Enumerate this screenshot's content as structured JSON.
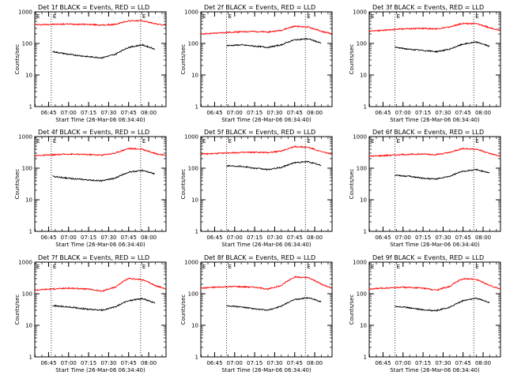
{
  "chart_data": [
    {
      "type": "line",
      "title": "Det 1f BLACK = Events, RED = LLD",
      "xlabel": "Start Time (26-Mar-06 06:34:40)",
      "ylabel": "Counts/sec",
      "yscale": "log",
      "ylim": [
        1,
        1000
      ],
      "xlim": [
        "06:34:40",
        "08:13:00"
      ],
      "x_ticks": [
        "06:45",
        "07:00",
        "07:15",
        "07:30",
        "07:45",
        "08:00"
      ],
      "y_ticks": [
        "1",
        "10",
        "100",
        "1000"
      ],
      "markers": [
        "06:47",
        "07:54"
      ],
      "marker_label": "E",
      "grid": false,
      "series": [
        {
          "color": "#ff0000",
          "x": [
            "06:34:40",
            "06:45",
            "07:00",
            "07:15",
            "07:25",
            "07:35",
            "07:45",
            "07:55",
            "08:05",
            "08:13"
          ],
          "y": [
            390,
            400,
            410,
            400,
            380,
            400,
            520,
            520,
            420,
            370
          ]
        },
        {
          "color": "#000000",
          "x": [
            "06:48",
            "07:00",
            "07:15",
            "07:25",
            "07:35",
            "07:45",
            "07:55",
            "08:05"
          ],
          "y": [
            55,
            45,
            38,
            35,
            45,
            75,
            90,
            65
          ]
        }
      ]
    },
    {
      "type": "line",
      "title": "Det 2f BLACK = Events, RED = LLD",
      "xlabel": "Start Time (26-Mar-06 06:34:40)",
      "ylabel": "Counts/sec",
      "yscale": "log",
      "ylim": [
        1,
        1000
      ],
      "xlim": [
        "06:34:40",
        "08:13:00"
      ],
      "x_ticks": [
        "06:45",
        "07:00",
        "07:15",
        "07:30",
        "07:45",
        "08:00"
      ],
      "y_ticks": [
        "1",
        "10",
        "100",
        "1000"
      ],
      "markers": [
        "06:54",
        "07:53"
      ],
      "marker_label": "E",
      "grid": false,
      "series": [
        {
          "color": "#ff0000",
          "x": [
            "06:34:40",
            "06:45",
            "07:00",
            "07:15",
            "07:25",
            "07:35",
            "07:45",
            "07:55",
            "08:05",
            "08:13"
          ],
          "y": [
            200,
            210,
            230,
            240,
            230,
            260,
            350,
            330,
            240,
            200
          ]
        },
        {
          "color": "#000000",
          "x": [
            "06:54",
            "07:05",
            "07:15",
            "07:25",
            "07:35",
            "07:45",
            "07:55",
            "08:05"
          ],
          "y": [
            85,
            90,
            82,
            75,
            90,
            130,
            140,
            100
          ]
        }
      ]
    },
    {
      "type": "line",
      "title": "Det 3f BLACK = Events, RED = LLD",
      "xlabel": "Start Time (26-Mar-06 06:34:40)",
      "ylabel": "Counts/sec",
      "yscale": "log",
      "ylim": [
        1,
        1000
      ],
      "xlim": [
        "06:34:40",
        "08:13:00"
      ],
      "x_ticks": [
        "06:45",
        "07:00",
        "07:15",
        "07:30",
        "07:45",
        "08:00"
      ],
      "y_ticks": [
        "1",
        "10",
        "100",
        "1000"
      ],
      "markers": [
        "06:54",
        "07:53"
      ],
      "marker_label": "E",
      "grid": false,
      "series": [
        {
          "color": "#ff0000",
          "x": [
            "06:34:40",
            "06:45",
            "07:00",
            "07:15",
            "07:25",
            "07:35",
            "07:45",
            "07:55",
            "08:05",
            "08:13"
          ],
          "y": [
            250,
            260,
            290,
            300,
            290,
            330,
            430,
            420,
            310,
            260
          ]
        },
        {
          "color": "#000000",
          "x": [
            "06:54",
            "07:05",
            "07:15",
            "07:25",
            "07:35",
            "07:45",
            "07:55",
            "08:05"
          ],
          "y": [
            75,
            65,
            60,
            55,
            65,
            95,
            110,
            80
          ]
        }
      ]
    },
    {
      "type": "line",
      "title": "Det 4f BLACK = Events, RED = LLD",
      "xlabel": "Start Time (26-Mar-06 06:34:40)",
      "ylabel": "Counts/sec",
      "yscale": "log",
      "ylim": [
        1,
        1000
      ],
      "xlim": [
        "06:34:40",
        "08:13:00"
      ],
      "x_ticks": [
        "06:45",
        "07:00",
        "07:15",
        "07:30",
        "07:45",
        "08:00"
      ],
      "y_ticks": [
        "1",
        "10",
        "100",
        "1000"
      ],
      "markers": [
        "06:47",
        "07:54"
      ],
      "marker_label": "E",
      "grid": false,
      "series": [
        {
          "color": "#ff0000",
          "x": [
            "06:34:40",
            "06:45",
            "07:00",
            "07:15",
            "07:25",
            "07:35",
            "07:45",
            "07:55",
            "08:05",
            "08:13"
          ],
          "y": [
            250,
            260,
            280,
            270,
            260,
            300,
            420,
            400,
            290,
            250
          ]
        },
        {
          "color": "#000000",
          "x": [
            "06:48",
            "07:00",
            "07:15",
            "07:25",
            "07:35",
            "07:45",
            "07:55",
            "08:05"
          ],
          "y": [
            55,
            48,
            42,
            40,
            48,
            75,
            85,
            65
          ]
        }
      ]
    },
    {
      "type": "line",
      "title": "Det 5f BLACK = Events, RED = LLD",
      "xlabel": "Start Time (26-Mar-06 06:34:40)",
      "ylabel": "Counts/sec",
      "yscale": "log",
      "ylim": [
        1,
        1000
      ],
      "xlim": [
        "06:34:40",
        "08:13:00"
      ],
      "x_ticks": [
        "06:45",
        "07:00",
        "07:15",
        "07:30",
        "07:45",
        "08:00"
      ],
      "y_ticks": [
        "1",
        "10",
        "100",
        "1000"
      ],
      "markers": [
        "06:54",
        "07:53"
      ],
      "marker_label": "E",
      "grid": false,
      "series": [
        {
          "color": "#ff0000",
          "x": [
            "06:34:40",
            "06:45",
            "07:00",
            "07:15",
            "07:25",
            "07:35",
            "07:45",
            "07:55",
            "08:05",
            "08:13"
          ],
          "y": [
            280,
            290,
            310,
            320,
            310,
            350,
            480,
            460,
            330,
            280
          ]
        },
        {
          "color": "#000000",
          "x": [
            "06:54",
            "07:05",
            "07:15",
            "07:25",
            "07:35",
            "07:45",
            "07:55",
            "08:05"
          ],
          "y": [
            120,
            115,
            100,
            90,
            105,
            150,
            160,
            120
          ]
        }
      ]
    },
    {
      "type": "line",
      "title": "Det 6f BLACK = Events, RED = LLD",
      "xlabel": "Start Time (26-Mar-06 06:34:40)",
      "ylabel": "Counts/sec",
      "yscale": "log",
      "ylim": [
        1,
        1000
      ],
      "xlim": [
        "06:34:40",
        "08:13:00"
      ],
      "x_ticks": [
        "06:45",
        "07:00",
        "07:15",
        "07:30",
        "07:45",
        "08:00"
      ],
      "y_ticks": [
        "1",
        "10",
        "100",
        "1000"
      ],
      "markers": [
        "06:54",
        "07:53"
      ],
      "marker_label": "E",
      "grid": false,
      "series": [
        {
          "color": "#ff0000",
          "x": [
            "06:34:40",
            "06:45",
            "07:00",
            "07:15",
            "07:25",
            "07:35",
            "07:45",
            "07:55",
            "08:05",
            "08:13"
          ],
          "y": [
            240,
            250,
            270,
            280,
            270,
            310,
            420,
            400,
            290,
            240
          ]
        },
        {
          "color": "#000000",
          "x": [
            "06:54",
            "07:05",
            "07:15",
            "07:25",
            "07:35",
            "07:45",
            "07:55",
            "08:05"
          ],
          "y": [
            60,
            55,
            48,
            45,
            55,
            80,
            90,
            70
          ]
        }
      ]
    },
    {
      "type": "line",
      "title": "Det 7f BLACK = Events, RED = LLD",
      "xlabel": "Start Time (26-Mar-06 06:34:40)",
      "ylabel": "Counts/sec",
      "yscale": "log",
      "ylim": [
        1,
        1000
      ],
      "xlim": [
        "06:34:40",
        "08:13:00"
      ],
      "x_ticks": [
        "06:45",
        "07:00",
        "07:15",
        "07:30",
        "07:45",
        "08:00"
      ],
      "y_ticks": [
        "1",
        "10",
        "100",
        "1000"
      ],
      "markers": [
        "06:47",
        "07:54"
      ],
      "marker_label": "E",
      "grid": false,
      "series": [
        {
          "color": "#ff0000",
          "x": [
            "06:34:40",
            "06:45",
            "07:00",
            "07:15",
            "07:25",
            "07:35",
            "07:45",
            "07:55",
            "08:05",
            "08:13"
          ],
          "y": [
            130,
            140,
            150,
            140,
            120,
            160,
            300,
            280,
            180,
            140
          ]
        },
        {
          "color": "#000000",
          "x": [
            "06:48",
            "07:00",
            "07:15",
            "07:25",
            "07:35",
            "07:45",
            "07:55",
            "08:05"
          ],
          "y": [
            42,
            38,
            32,
            30,
            38,
            60,
            70,
            50
          ]
        }
      ]
    },
    {
      "type": "line",
      "title": "Det 8f BLACK = Events, RED = LLD",
      "xlabel": "Start Time (26-Mar-06 06:34:40)",
      "ylabel": "Counts/sec",
      "yscale": "log",
      "ylim": [
        1,
        1000
      ],
      "xlim": [
        "06:34:40",
        "08:13:00"
      ],
      "x_ticks": [
        "06:45",
        "07:00",
        "07:15",
        "07:30",
        "07:45",
        "08:00"
      ],
      "y_ticks": [
        "1",
        "10",
        "100",
        "1000"
      ],
      "markers": [
        "06:54",
        "07:53"
      ],
      "marker_label": "E",
      "grid": false,
      "series": [
        {
          "color": "#ff0000",
          "x": [
            "06:34:40",
            "06:45",
            "07:00",
            "07:15",
            "07:25",
            "07:35",
            "07:45",
            "07:55",
            "08:05",
            "08:13"
          ],
          "y": [
            150,
            160,
            170,
            160,
            140,
            180,
            340,
            320,
            200,
            150
          ]
        },
        {
          "color": "#000000",
          "x": [
            "06:54",
            "07:05",
            "07:15",
            "07:25",
            "07:35",
            "07:45",
            "07:55",
            "08:05"
          ],
          "y": [
            42,
            38,
            33,
            30,
            40,
            65,
            75,
            55
          ]
        }
      ]
    },
    {
      "type": "line",
      "title": "Det 9f BLACK = Events, RED = LLD",
      "xlabel": "Start Time (26-Mar-06 06:34:40)",
      "ylabel": "Counts/sec",
      "yscale": "log",
      "ylim": [
        1,
        1000
      ],
      "xlim": [
        "06:34:40",
        "08:13:00"
      ],
      "x_ticks": [
        "06:45",
        "07:00",
        "07:15",
        "07:30",
        "07:45",
        "08:00"
      ],
      "y_ticks": [
        "1",
        "10",
        "100",
        "1000"
      ],
      "markers": [
        "06:54",
        "07:53"
      ],
      "marker_label": "E",
      "grid": false,
      "series": [
        {
          "color": "#ff0000",
          "x": [
            "06:34:40",
            "06:45",
            "07:00",
            "07:15",
            "07:25",
            "07:35",
            "07:45",
            "07:55",
            "08:05",
            "08:13"
          ],
          "y": [
            140,
            150,
            160,
            150,
            130,
            170,
            300,
            280,
            180,
            140
          ]
        },
        {
          "color": "#000000",
          "x": [
            "06:54",
            "07:05",
            "07:15",
            "07:25",
            "07:35",
            "07:45",
            "07:55",
            "08:05"
          ],
          "y": [
            40,
            36,
            31,
            29,
            37,
            60,
            72,
            52
          ]
        }
      ]
    }
  ]
}
